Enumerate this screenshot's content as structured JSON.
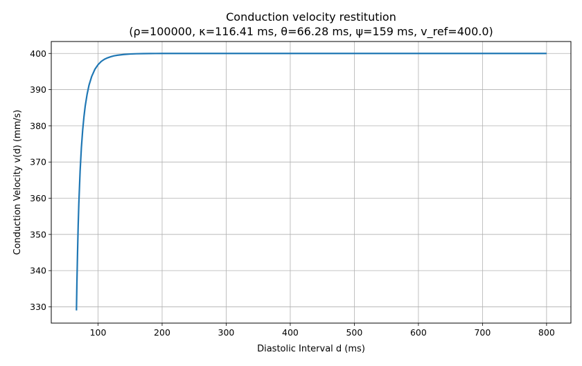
{
  "chart_data": {
    "type": "line",
    "title": "Conduction velocity restitution",
    "subtitle": "(ρ=100000, κ=116.41 ms, θ=66.28 ms, ψ=159 ms, v_ref=400.0)",
    "xlabel": "Diastolic Interval d (ms)",
    "ylabel": "Conduction Velocity v(d) (mm/s)",
    "xlim": [
      27,
      838
    ],
    "ylim": [
      325.5,
      403.3
    ],
    "xticks": [
      100,
      200,
      300,
      400,
      500,
      600,
      700,
      800
    ],
    "yticks": [
      330,
      340,
      350,
      360,
      370,
      380,
      390,
      400
    ],
    "grid": true,
    "series": [
      {
        "name": "v(d)",
        "color": "#1f77b4",
        "x": [
          66.3,
          67,
          68,
          69,
          70,
          72,
          74,
          76,
          78,
          80,
          83,
          86,
          90,
          95,
          100,
          105,
          110,
          115,
          120,
          125,
          130,
          140,
          150,
          160,
          170,
          180,
          190,
          200,
          250,
          300,
          400,
          500,
          600,
          700,
          800
        ],
        "values": [
          329.0,
          336.5,
          345.0,
          352.5,
          358.5,
          367.5,
          374.0,
          378.8,
          382.5,
          385.5,
          388.8,
          391.3,
          393.6,
          395.6,
          396.9,
          397.8,
          398.4,
          398.8,
          399.1,
          399.35,
          399.5,
          399.72,
          399.85,
          399.92,
          399.96,
          399.98,
          399.99,
          400.0,
          400.0,
          400.0,
          400.0,
          400.0,
          400.0,
          400.0,
          400.0
        ]
      }
    ]
  }
}
